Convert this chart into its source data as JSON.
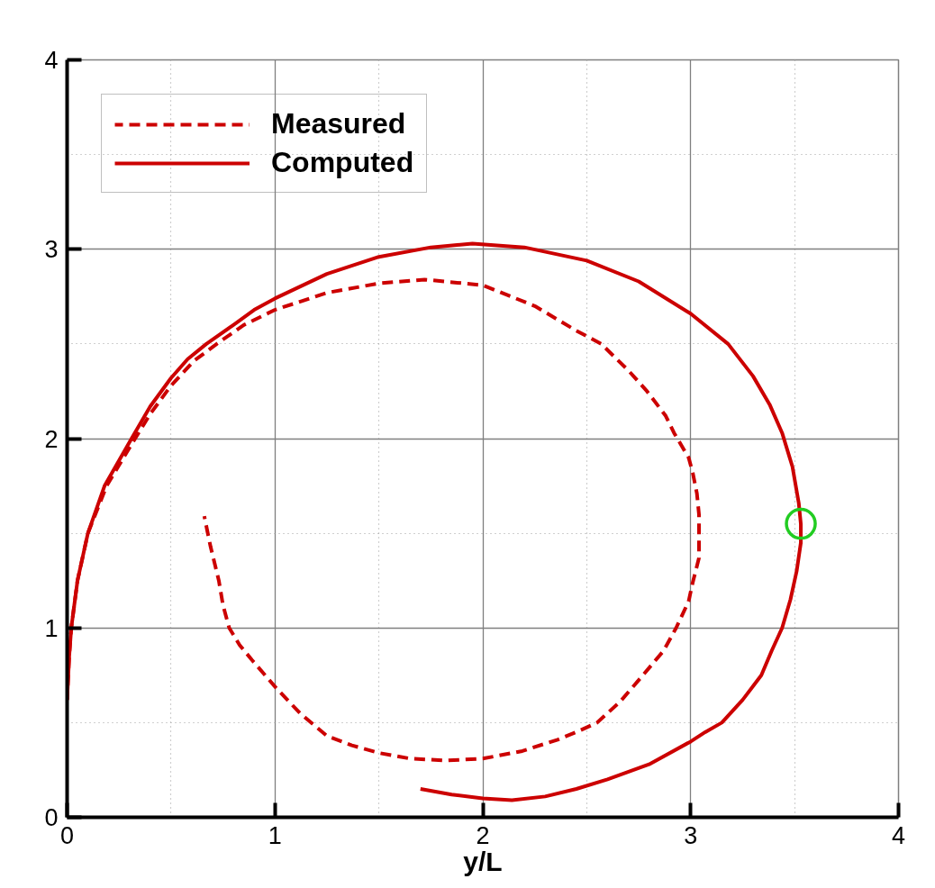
{
  "chart_data": {
    "type": "line",
    "xlabel": "y/L",
    "xlim": [
      0,
      4
    ],
    "ylim": [
      0,
      4
    ],
    "xticks": [
      0,
      1,
      2,
      3,
      4
    ],
    "yticks": [
      0,
      1,
      2,
      3,
      4
    ],
    "grid": true,
    "legend": "top left",
    "series": [
      {
        "name": "Measured",
        "color": "#cc0000",
        "line_style": "dashed",
        "x": [
          0.0,
          0.01,
          0.02,
          0.05,
          0.1,
          0.19,
          0.31,
          0.4,
          0.5,
          0.61,
          0.72,
          0.85,
          1.0,
          1.25,
          1.5,
          1.72,
          2.0,
          2.25,
          2.45,
          2.57,
          2.7,
          2.79,
          2.88,
          2.92,
          2.99,
          3.01,
          3.03,
          3.04,
          3.04,
          3.04,
          3.01,
          2.99,
          2.93,
          2.87,
          2.77,
          2.66,
          2.55,
          2.45,
          2.36,
          2.19,
          2.0,
          1.82,
          1.65,
          1.5,
          1.37,
          1.25,
          1.12,
          1.0,
          0.89,
          0.83,
          0.78,
          0.75,
          0.73,
          0.69,
          0.66
        ],
        "values": [
          0.62,
          0.85,
          1.0,
          1.25,
          1.5,
          1.75,
          1.97,
          2.13,
          2.28,
          2.41,
          2.5,
          2.6,
          2.68,
          2.77,
          2.82,
          2.84,
          2.81,
          2.7,
          2.57,
          2.5,
          2.36,
          2.25,
          2.12,
          2.03,
          1.9,
          1.82,
          1.71,
          1.6,
          1.5,
          1.37,
          1.24,
          1.14,
          1.0,
          0.88,
          0.75,
          0.61,
          0.5,
          0.45,
          0.41,
          0.35,
          0.31,
          0.3,
          0.31,
          0.34,
          0.38,
          0.43,
          0.55,
          0.69,
          0.83,
          0.91,
          1.0,
          1.12,
          1.25,
          1.43,
          1.59
        ]
      },
      {
        "name": "Computed",
        "color": "#cc0000",
        "line_style": "solid",
        "x": [
          0.0,
          0.01,
          0.02,
          0.05,
          0.1,
          0.18,
          0.31,
          0.4,
          0.5,
          0.58,
          0.67,
          0.8,
          0.9,
          1.0,
          1.25,
          1.5,
          1.75,
          1.95,
          2.2,
          2.5,
          2.75,
          3.0,
          3.18,
          3.3,
          3.38,
          3.44,
          3.49,
          3.52,
          3.53,
          3.53,
          3.51,
          3.48,
          3.44,
          3.39,
          3.34,
          3.25,
          3.15,
          3.07,
          3.0,
          2.8,
          2.6,
          2.45,
          2.3,
          2.14,
          2.0,
          1.85,
          1.7
        ],
        "values": [
          0.62,
          0.85,
          1.0,
          1.25,
          1.5,
          1.75,
          2.0,
          2.17,
          2.32,
          2.42,
          2.5,
          2.6,
          2.68,
          2.74,
          2.87,
          2.96,
          3.01,
          3.03,
          3.01,
          2.94,
          2.83,
          2.66,
          2.5,
          2.33,
          2.18,
          2.03,
          1.85,
          1.66,
          1.55,
          1.45,
          1.3,
          1.15,
          1.0,
          0.88,
          0.75,
          0.62,
          0.5,
          0.45,
          0.4,
          0.28,
          0.2,
          0.15,
          0.11,
          0.09,
          0.1,
          0.12,
          0.15
        ]
      },
      {
        "type": "scatter",
        "color": "#22cc22",
        "marker": "circle",
        "x": [
          3.53
        ],
        "values": [
          1.55
        ]
      }
    ]
  }
}
